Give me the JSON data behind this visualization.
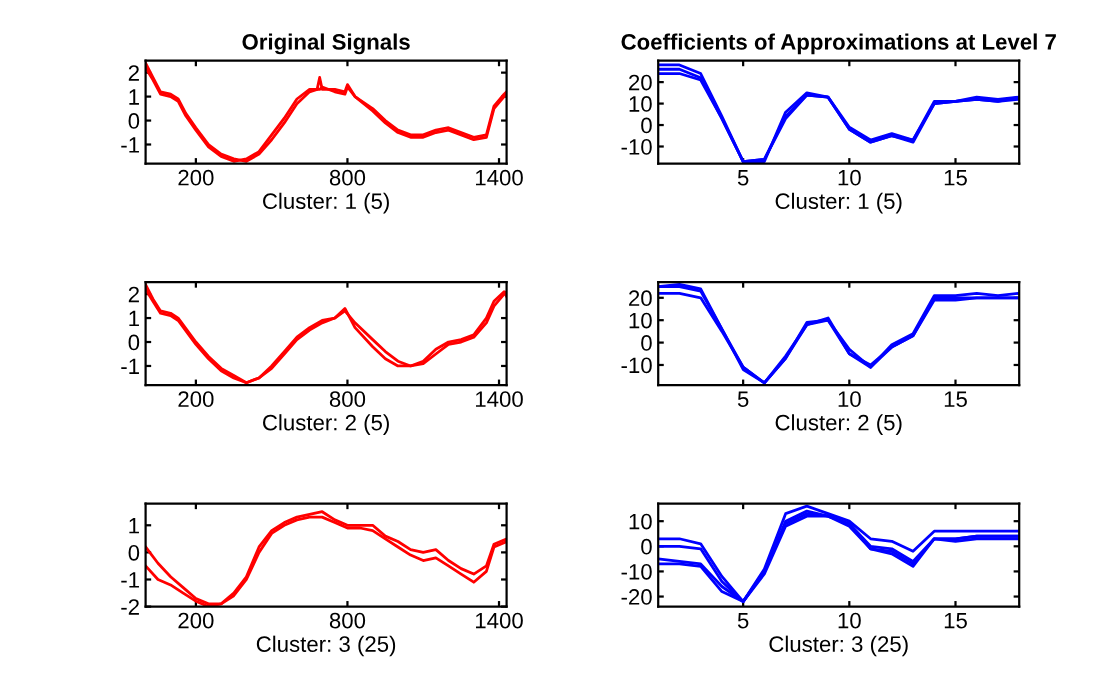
{
  "chart_data": [
    {
      "type": "line",
      "title": "Original Signals",
      "xlabel": "Cluster: 1 (5)",
      "xlim": [
        1,
        1430
      ],
      "ylim": [
        -1.8,
        2.5
      ],
      "xticks": [
        200,
        800,
        1400
      ],
      "yticks": [
        -1,
        0,
        1,
        2
      ],
      "x": [
        1,
        30,
        60,
        100,
        130,
        160,
        200,
        250,
        300,
        350,
        400,
        450,
        500,
        550,
        600,
        650,
        680,
        690,
        700,
        750,
        790,
        800,
        830,
        900,
        950,
        1000,
        1050,
        1100,
        1150,
        1200,
        1250,
        1300,
        1350,
        1380,
        1420,
        1430
      ],
      "series": [
        {
          "color": "#ff0000",
          "values": [
            2.4,
            1.8,
            1.2,
            1.1,
            0.9,
            0.3,
            -0.3,
            -1.0,
            -1.4,
            -1.6,
            -1.7,
            -1.4,
            -0.8,
            -0.1,
            0.7,
            1.2,
            1.3,
            1.8,
            1.3,
            1.3,
            1.2,
            1.5,
            1.0,
            0.5,
            0.0,
            -0.4,
            -0.6,
            -0.6,
            -0.4,
            -0.3,
            -0.5,
            -0.7,
            -0.6,
            0.6,
            1.1,
            1.2
          ]
        },
        {
          "color": "#ff0000",
          "values": [
            2.2,
            1.7,
            1.1,
            1.0,
            0.8,
            0.2,
            -0.4,
            -1.1,
            -1.5,
            -1.7,
            -1.6,
            -1.3,
            -0.6,
            0.1,
            0.9,
            1.3,
            1.3,
            1.3,
            1.4,
            1.2,
            1.1,
            1.4,
            1.0,
            0.4,
            -0.1,
            -0.5,
            -0.7,
            -0.7,
            -0.5,
            -0.4,
            -0.6,
            -0.8,
            -0.7,
            0.5,
            1.0,
            1.1
          ]
        }
      ]
    },
    {
      "type": "line",
      "title": "Coefficients of Approximations at Level 7",
      "xlabel": "Cluster: 1 (5)",
      "xlim": [
        1,
        18
      ],
      "ylim": [
        -18,
        30
      ],
      "xticks": [
        5,
        10,
        15
      ],
      "yticks": [
        -10,
        0,
        10,
        20
      ],
      "x": [
        1,
        2,
        3,
        4,
        5,
        6,
        7,
        8,
        9,
        10,
        11,
        12,
        13,
        14,
        15,
        16,
        17,
        18
      ],
      "series": [
        {
          "color": "#0000ff",
          "values": [
            28,
            28,
            24,
            4,
            -17,
            -17,
            6,
            15,
            13,
            -1,
            -7,
            -4,
            -7,
            11,
            11,
            13,
            12,
            13
          ]
        },
        {
          "color": "#0000ff",
          "values": [
            26,
            26,
            22,
            3,
            -17,
            -16,
            4,
            14,
            13,
            -2,
            -8,
            -5,
            -8,
            10,
            11,
            12,
            11,
            12
          ]
        },
        {
          "color": "#0000ff",
          "values": [
            24,
            24,
            21,
            3,
            -17,
            -16,
            3,
            14,
            13,
            -2,
            -8,
            -5,
            -7,
            10,
            11,
            12,
            11,
            13
          ]
        }
      ]
    },
    {
      "type": "line",
      "xlabel": "Cluster: 2 (5)",
      "xlim": [
        1,
        1430
      ],
      "ylim": [
        -1.8,
        2.5
      ],
      "xticks": [
        200,
        800,
        1400
      ],
      "yticks": [
        -1,
        0,
        1,
        2
      ],
      "x": [
        1,
        30,
        60,
        100,
        130,
        200,
        250,
        300,
        350,
        400,
        450,
        500,
        550,
        600,
        650,
        700,
        750,
        790,
        830,
        900,
        950,
        1000,
        1050,
        1100,
        1150,
        1200,
        1250,
        1300,
        1350,
        1380,
        1420,
        1430
      ],
      "series": [
        {
          "color": "#ff0000",
          "values": [
            2.4,
            1.8,
            1.3,
            1.2,
            1.0,
            0.0,
            -0.6,
            -1.1,
            -1.4,
            -1.7,
            -1.5,
            -1.0,
            -0.4,
            0.2,
            0.6,
            0.9,
            1.0,
            1.4,
            0.6,
            -0.2,
            -0.7,
            -1.0,
            -1.0,
            -0.8,
            -0.3,
            0.0,
            0.1,
            0.3,
            1.0,
            1.7,
            2.1,
            1.9
          ]
        },
        {
          "color": "#ff0000",
          "values": [
            2.2,
            1.7,
            1.2,
            1.1,
            0.9,
            -0.1,
            -0.7,
            -1.2,
            -1.5,
            -1.7,
            -1.5,
            -1.1,
            -0.5,
            0.1,
            0.5,
            0.8,
            1.0,
            1.3,
            0.8,
            0.1,
            -0.4,
            -0.8,
            -1.0,
            -0.9,
            -0.5,
            -0.1,
            0.0,
            0.2,
            0.8,
            1.5,
            2.0,
            2.1
          ]
        }
      ]
    },
    {
      "type": "line",
      "xlabel": "Cluster: 2 (5)",
      "xlim": [
        1,
        18
      ],
      "ylim": [
        -19,
        27
      ],
      "xticks": [
        5,
        10,
        15
      ],
      "yticks": [
        -10,
        0,
        10,
        20
      ],
      "x": [
        1,
        2,
        3,
        4,
        5,
        6,
        7,
        8,
        9,
        10,
        11,
        12,
        13,
        14,
        15,
        16,
        17,
        18
      ],
      "series": [
        {
          "color": "#0000ff",
          "values": [
            25,
            26,
            24,
            6,
            -11,
            -18,
            -7,
            9,
            10,
            -3,
            -11,
            -1,
            4,
            21,
            21,
            22,
            21,
            22
          ]
        },
        {
          "color": "#0000ff",
          "values": [
            25,
            25,
            23,
            6,
            -12,
            -18,
            -7,
            8,
            10,
            -5,
            -11,
            -2,
            3,
            19,
            19,
            20,
            20,
            20
          ]
        },
        {
          "color": "#0000ff",
          "values": [
            22,
            22,
            20,
            5,
            -11,
            -18,
            -6,
            8,
            11,
            -5,
            -10,
            -2,
            3,
            20,
            20,
            20,
            20,
            20
          ]
        }
      ]
    },
    {
      "type": "line",
      "xlabel": "Cluster: 3 (25)",
      "xlim": [
        1,
        1430
      ],
      "ylim": [
        -2,
        1.8
      ],
      "xticks": [
        200,
        800,
        1400
      ],
      "yticks": [
        -2,
        -1,
        0,
        1
      ],
      "x": [
        1,
        50,
        100,
        150,
        200,
        250,
        300,
        350,
        400,
        450,
        500,
        550,
        600,
        650,
        700,
        750,
        800,
        850,
        900,
        950,
        1000,
        1050,
        1100,
        1150,
        1200,
        1250,
        1300,
        1350,
        1380,
        1430
      ],
      "series": [
        {
          "color": "#ff0000",
          "values": [
            0.2,
            -0.4,
            -0.9,
            -1.3,
            -1.7,
            -1.9,
            -1.9,
            -1.5,
            -0.9,
            0.2,
            0.8,
            1.1,
            1.3,
            1.4,
            1.5,
            1.2,
            1.0,
            1.0,
            1.0,
            0.6,
            0.4,
            0.1,
            0.0,
            0.1,
            -0.3,
            -0.6,
            -0.8,
            -0.5,
            0.3,
            0.5
          ]
        },
        {
          "color": "#ff0000",
          "values": [
            -0.5,
            -1.0,
            -1.2,
            -1.5,
            -1.8,
            -2.0,
            -1.9,
            -1.6,
            -1.0,
            0.0,
            0.7,
            1.0,
            1.2,
            1.3,
            1.3,
            1.1,
            0.9,
            0.9,
            0.8,
            0.5,
            0.2,
            -0.1,
            -0.3,
            -0.2,
            -0.5,
            -0.8,
            -1.1,
            -0.7,
            0.2,
            0.4
          ]
        }
      ]
    },
    {
      "type": "line",
      "xlabel": "Cluster: 3 (25)",
      "xlim": [
        1,
        18
      ],
      "ylim": [
        -24,
        17
      ],
      "xticks": [
        5,
        10,
        15
      ],
      "yticks": [
        -20,
        -10,
        0,
        10
      ],
      "x": [
        1,
        2,
        3,
        4,
        5,
        6,
        7,
        8,
        9,
        10,
        11,
        12,
        13,
        14,
        15,
        16,
        17,
        18
      ],
      "series": [
        {
          "color": "#0000ff",
          "values": [
            3,
            3,
            1,
            -12,
            -22,
            -9,
            13,
            16,
            13,
            10,
            3,
            2,
            -2,
            6,
            6,
            6,
            6,
            6
          ]
        },
        {
          "color": "#0000ff",
          "values": [
            0,
            0,
            -1,
            -14,
            -22,
            -10,
            10,
            14,
            12,
            9,
            0,
            -1,
            -6,
            3,
            3,
            4,
            4,
            4
          ]
        },
        {
          "color": "#0000ff",
          "values": [
            -5,
            -6,
            -7,
            -16,
            -22,
            -10,
            9,
            13,
            12,
            9,
            -1,
            -2,
            -7,
            3,
            3,
            4,
            4,
            4
          ]
        },
        {
          "color": "#0000ff",
          "values": [
            -7,
            -7,
            -8,
            -18,
            -22,
            -11,
            8,
            12,
            12,
            8,
            -1,
            -3,
            -8,
            3,
            2,
            3,
            3,
            3
          ]
        }
      ]
    }
  ]
}
